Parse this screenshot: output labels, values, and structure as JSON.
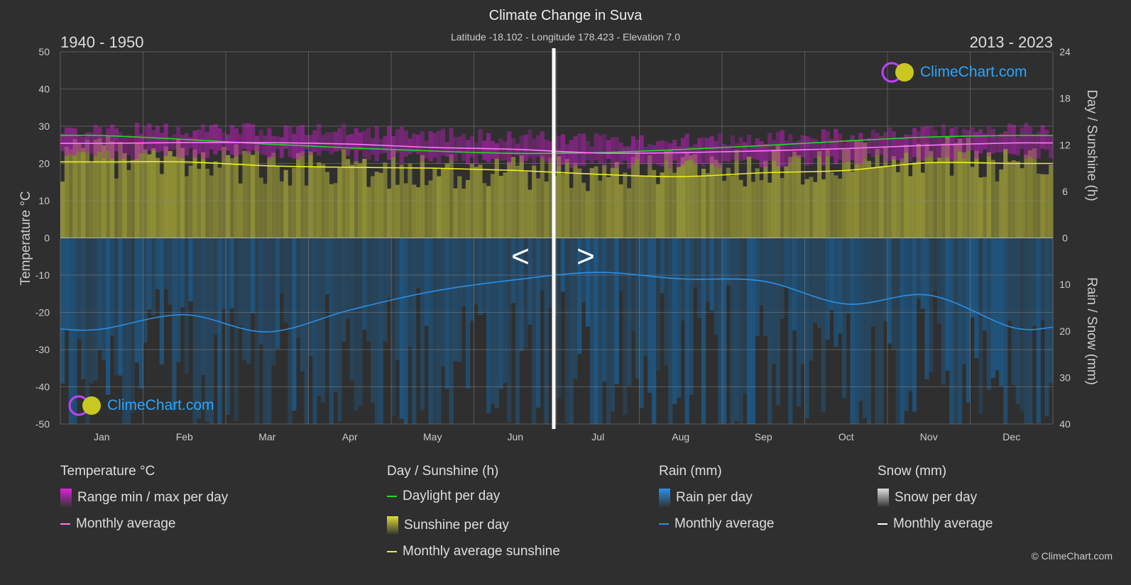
{
  "header": {
    "title": "Climate Change in Suva",
    "subtitle": "Latitude -18.102 - Longitude 178.423 - Elevation 7.0",
    "period_left": "1940 - 1950",
    "period_right": "2013 - 2023"
  },
  "logo_text": "ClimeChart.com",
  "copyright": "© ClimeChart.com",
  "chart_data": {
    "type": "line",
    "categories": [
      "Jan",
      "Feb",
      "Mar",
      "Apr",
      "May",
      "Jun",
      "Jul",
      "Aug",
      "Sep",
      "Oct",
      "Nov",
      "Dec"
    ],
    "left_axis": {
      "label": "Temperature °C",
      "range": [
        -50,
        50
      ],
      "ticks": [
        50,
        40,
        30,
        20,
        10,
        0,
        -10,
        -20,
        -30,
        -40,
        -50
      ]
    },
    "right_axis_top": {
      "label": "Day / Sunshine (h)",
      "range": [
        0,
        24
      ],
      "ticks": [
        24,
        18,
        12,
        6,
        0
      ]
    },
    "right_axis_bottom": {
      "label": "Rain / Snow (mm)",
      "range": [
        0,
        40
      ],
      "ticks": [
        0,
        10,
        20,
        30,
        40
      ]
    },
    "grid": true,
    "series": [
      {
        "name": "Daylight per day",
        "axis": "hours",
        "color": "#22dd22",
        "values": [
          13.2,
          12.7,
          12.1,
          11.6,
          11.2,
          10.9,
          11.0,
          11.4,
          11.9,
          12.5,
          13.0,
          13.2
        ]
      },
      {
        "name": "Monthly average",
        "group": "Temperature °C",
        "axis": "temperature",
        "color": "#ff77ff",
        "values": [
          25.4,
          25.6,
          25.6,
          25.2,
          24.3,
          23.8,
          22.8,
          22.9,
          23.4,
          24.0,
          24.9,
          25.5
        ]
      },
      {
        "name": "Monthly average sunshine",
        "axis": "hours",
        "color": "#eeee22",
        "values": [
          9.8,
          9.8,
          9.3,
          9.1,
          9.0,
          8.7,
          8.2,
          7.9,
          8.4,
          8.7,
          9.7,
          9.6
        ]
      },
      {
        "name": "Monthly average",
        "group": "Rain (mm)",
        "axis": "rain",
        "color": "#2a8fe8",
        "values": [
          19.6,
          16.5,
          20.2,
          15.5,
          11.5,
          9.0,
          7.4,
          8.8,
          9.3,
          14.2,
          12.3,
          19.2
        ]
      }
    ],
    "nav": {
      "prev": "<",
      "next": ">"
    }
  },
  "legend": {
    "groups": [
      {
        "title": "Temperature °C",
        "items": [
          {
            "label": "Range min / max per day",
            "type": "box",
            "color": "#dd22dd"
          },
          {
            "label": "Monthly average",
            "type": "line",
            "color": "#ff77ff"
          }
        ]
      },
      {
        "title": "Day / Sunshine (h)",
        "items": [
          {
            "label": "Daylight per day",
            "type": "line",
            "color": "#22dd22"
          },
          {
            "label": "Sunshine per day",
            "type": "box",
            "color": "#dddd33"
          },
          {
            "label": "Monthly average sunshine",
            "type": "line",
            "color": "#eeee22"
          }
        ]
      },
      {
        "title": "Rain (mm)",
        "items": [
          {
            "label": "Rain per day",
            "type": "box",
            "color": "#2a8fe8"
          },
          {
            "label": "Monthly average",
            "type": "line",
            "color": "#2a8fe8"
          }
        ]
      },
      {
        "title": "Snow (mm)",
        "items": [
          {
            "label": "Snow per day",
            "type": "box",
            "color": "#dddddd"
          },
          {
            "label": "Monthly average",
            "type": "line",
            "color": "#ffffff"
          }
        ]
      }
    ]
  }
}
